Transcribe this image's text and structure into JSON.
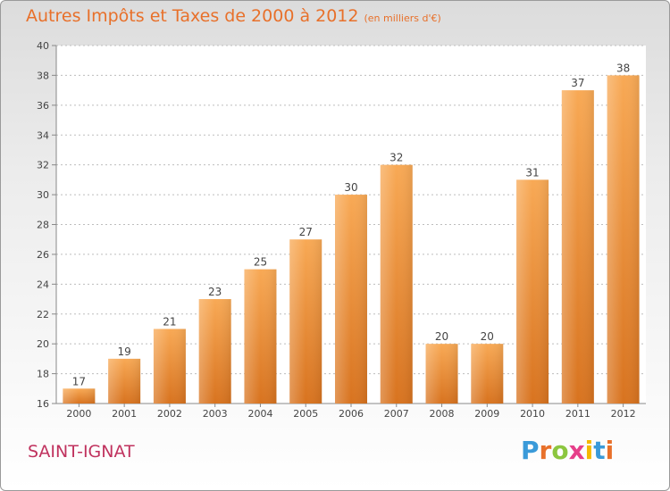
{
  "header": {
    "title": "Autres Impôts et Taxes de 2000 à 2012",
    "unit": "(en milliers d'€)"
  },
  "footer": {
    "commune": "SAINT-IGNAT",
    "logo_letters": [
      "P",
      "r",
      "o",
      "x",
      "i",
      "t",
      "i"
    ],
    "logo_colors": [
      "#3a9ad9",
      "#e8702a",
      "#8cc63f",
      "#e63f8a",
      "#f5b800",
      "#3a9ad9",
      "#e8702a"
    ]
  },
  "chart_data": {
    "type": "bar",
    "categories": [
      "2000",
      "2001",
      "2002",
      "2003",
      "2004",
      "2005",
      "2006",
      "2007",
      "2008",
      "2009",
      "2010",
      "2011",
      "2012"
    ],
    "values": [
      17,
      19,
      21,
      23,
      25,
      27,
      30,
      32,
      20,
      20,
      31,
      37,
      38
    ],
    "ylim": [
      16,
      40
    ],
    "yticks": [
      16,
      18,
      20,
      22,
      24,
      26,
      28,
      30,
      32,
      34,
      36,
      38,
      40
    ],
    "grid": true,
    "colors": {
      "bar_light": "#f8a955",
      "bar_dark": "#d8731f",
      "text": "#444444",
      "axis": "#888888"
    }
  }
}
